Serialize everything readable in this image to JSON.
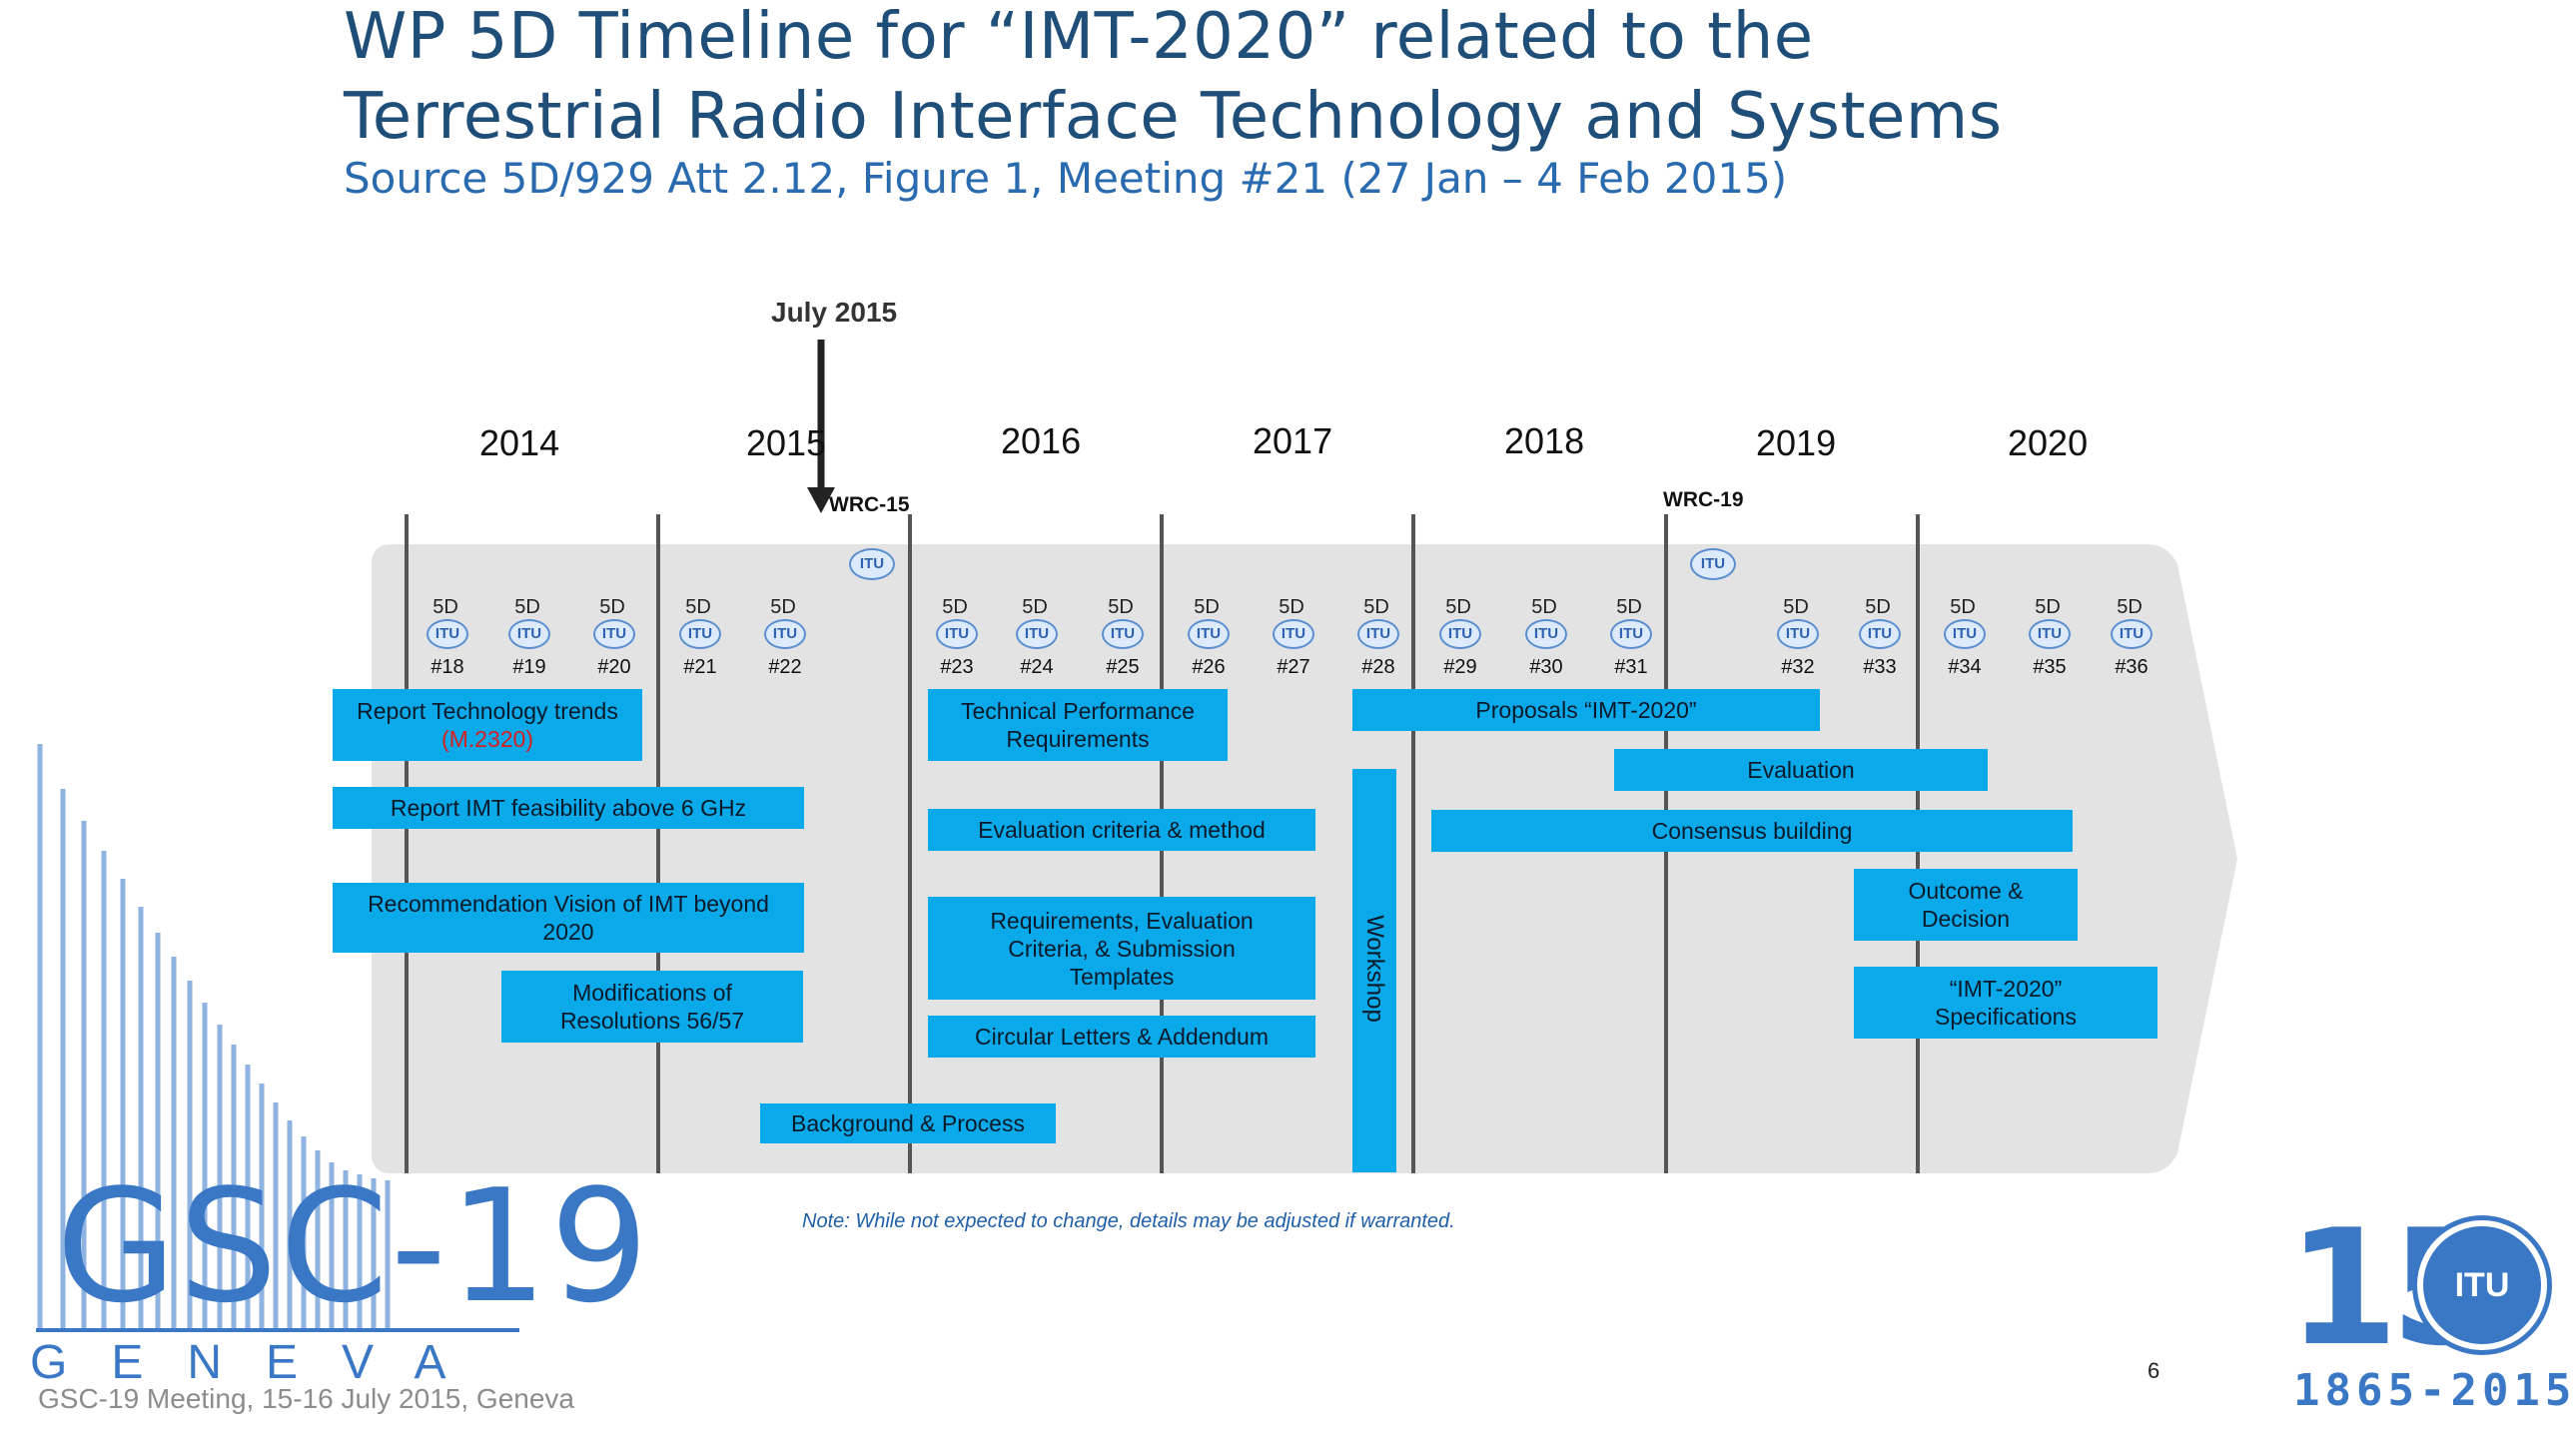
{
  "title": {
    "line1": "WP 5D Timeline for “IMT-2020” related to the",
    "line2": "Terrestrial Radio Interface Technology and Systems",
    "subtitle": "Source 5D/929 Att 2.12,  Figure 1,  Meeting #21 (27 Jan – 4 Feb 2015)"
  },
  "marker": {
    "label": "July 2015"
  },
  "years": [
    "2014",
    "2015",
    "2016",
    "2017",
    "2018",
    "2019",
    "2020"
  ],
  "wrc": {
    "wrc15": "WRC-15",
    "wrc19": "WRC-19"
  },
  "meeting_prefix": "5D",
  "itu_label": "ITU",
  "meetings": [
    "#18",
    "#19",
    "#20",
    "#21",
    "#22",
    "#23",
    "#24",
    "#25",
    "#26",
    "#27",
    "#28",
    "#29",
    "#30",
    "#31",
    "#32",
    "#33",
    "#34",
    "#35",
    "#36"
  ],
  "activities": {
    "report_trends": "Report Technology trends",
    "report_trends_ref": "(M.2320)",
    "report_feasibility": "Report  IMT feasibility  above 6 GHz",
    "rec_vision_1": "Recommendation Vision of IMT beyond",
    "rec_vision_2": "2020",
    "mods_1": "Modifications of",
    "mods_2": "Resolutions 56/57",
    "background": "Background & Process",
    "tech_perf_1": "Technical Performance",
    "tech_perf_2": "Requirements",
    "eval_criteria": "Evaluation criteria & method",
    "req_eval_1": "Requirements, Evaluation",
    "req_eval_2": "Criteria, & Submission",
    "req_eval_3": "Templates",
    "circular": "Circular Letters & Addendum",
    "workshop": "Workshop",
    "proposals": "Proposals “IMT-2020”",
    "evaluation": "Evaluation",
    "consensus": "Consensus building",
    "outcome_1": "Outcome &",
    "outcome_2": "Decision",
    "specs_1": "“IMT-2020”",
    "specs_2": "Specifications"
  },
  "note": "Note: While not expected to change, details may be adjusted if warranted.",
  "logo_gsc": {
    "name": "GSC-19",
    "city": "GENEVA"
  },
  "footer": "GSC-19 Meeting, 15-16 July 2015, Geneva",
  "page_number": "6",
  "logo_itu150": {
    "number": "15",
    "badge": "ITU",
    "years": "1865-2015"
  },
  "colors": {
    "box": "#0aa9e9",
    "title": "#1f4e79",
    "accent": "#3a78c6",
    "panel": "#e3e3e3"
  }
}
